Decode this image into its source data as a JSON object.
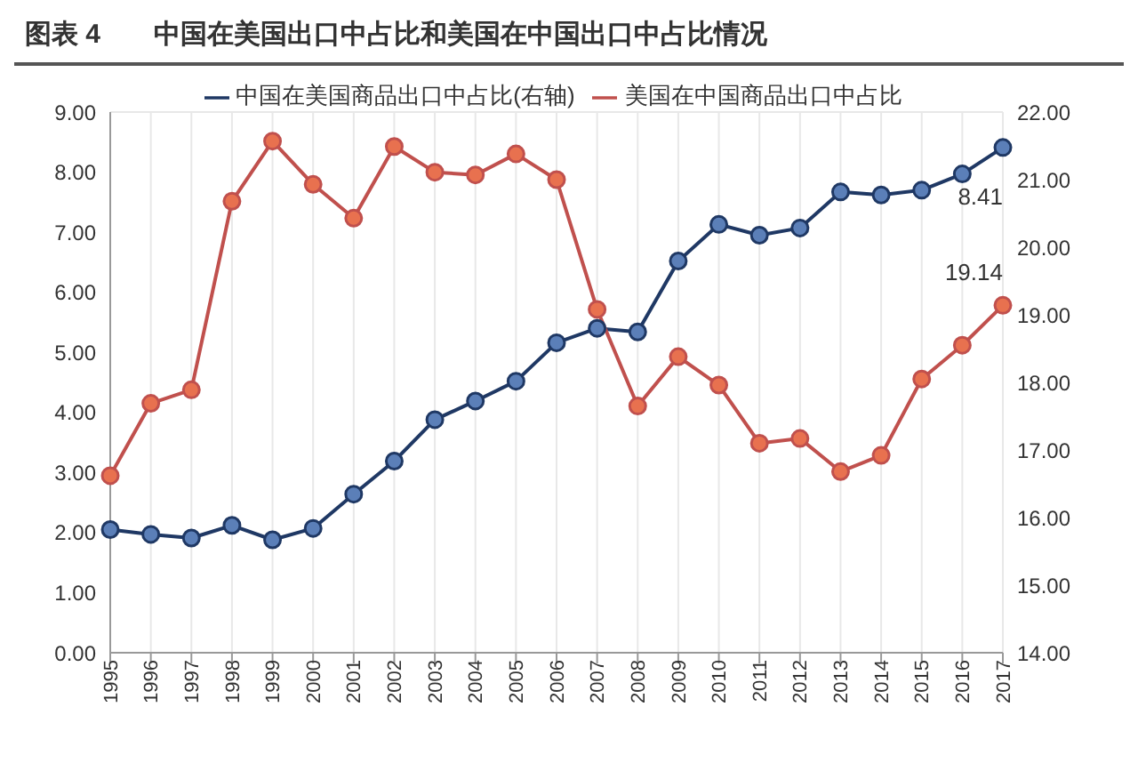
{
  "chart_data": {
    "type": "line",
    "title": "图表 4　　中国在美国出口中占比和美国在中国出口中占比情况",
    "categories": [
      "1995",
      "1996",
      "1997",
      "1998",
      "1999",
      "2000",
      "2001",
      "2002",
      "2003",
      "2004",
      "2005",
      "2006",
      "2007",
      "2008",
      "2009",
      "2010",
      "2011",
      "2012",
      "2013",
      "2014",
      "2015",
      "2016",
      "2017"
    ],
    "series": [
      {
        "name": "中国在美国商品出口中占比(右轴)",
        "color": "#1f3864",
        "values": [
          2.05,
          1.97,
          1.91,
          2.12,
          1.88,
          2.07,
          2.64,
          3.19,
          3.88,
          4.19,
          4.52,
          5.16,
          5.4,
          5.34,
          6.52,
          7.13,
          6.95,
          7.07,
          7.67,
          7.62,
          7.7,
          7.97,
          8.41
        ],
        "value_labels": [
          null,
          null,
          null,
          null,
          null,
          null,
          null,
          null,
          null,
          null,
          null,
          null,
          null,
          null,
          null,
          null,
          null,
          null,
          null,
          null,
          null,
          null,
          "8.41"
        ]
      },
      {
        "name": "美国在中国商品出口中占比",
        "color": "#c0504d",
        "axis": "y2",
        "values": [
          16.62,
          17.69,
          17.89,
          20.68,
          21.57,
          20.93,
          20.43,
          21.49,
          21.11,
          21.07,
          21.38,
          21.0,
          19.08,
          17.65,
          18.38,
          17.96,
          17.1,
          17.17,
          16.68,
          16.92,
          18.05,
          18.55,
          19.14
        ],
        "value_labels": [
          null,
          null,
          null,
          null,
          null,
          null,
          null,
          null,
          null,
          null,
          null,
          null,
          null,
          null,
          null,
          null,
          null,
          null,
          null,
          null,
          null,
          null,
          "19.14"
        ]
      }
    ],
    "ylim": [
      0,
      9
    ],
    "yticks": [
      {
        "value": 0,
        "label": "0.00"
      },
      {
        "value": 1,
        "label": "1.00"
      },
      {
        "value": 2,
        "label": "2.00"
      },
      {
        "value": 3,
        "label": "3.00"
      },
      {
        "value": 4,
        "label": "4.00"
      },
      {
        "value": 5,
        "label": "5.00"
      },
      {
        "value": 6,
        "label": "6.00"
      },
      {
        "value": 7,
        "label": "7.00"
      },
      {
        "value": 8,
        "label": "8.00"
      },
      {
        "value": 9,
        "label": "9.00"
      }
    ],
    "y2lim": [
      14,
      22
    ],
    "y2ticks": [
      {
        "value": 14,
        "label": "14.00"
      },
      {
        "value": 15,
        "label": "15.00"
      },
      {
        "value": 16,
        "label": "16.00"
      },
      {
        "value": 17,
        "label": "17.00"
      },
      {
        "value": 18,
        "label": "18.00"
      },
      {
        "value": 19,
        "label": "19.00"
      },
      {
        "value": 20,
        "label": "20.00"
      },
      {
        "value": 21,
        "label": "21.00"
      },
      {
        "value": 22,
        "label": "22.00"
      }
    ],
    "grid": true,
    "legend": "top",
    "marker": "circle",
    "line_style": "solid"
  }
}
